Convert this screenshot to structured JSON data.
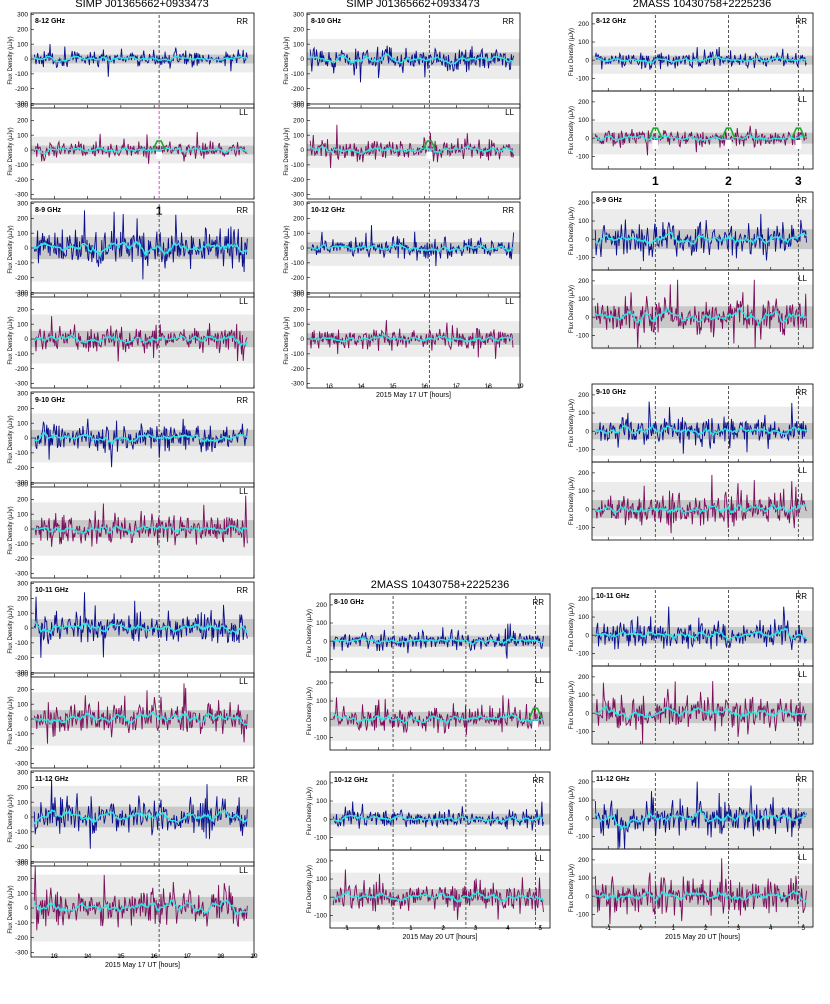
{
  "colors": {
    "rr": "#0b0f8a",
    "ll": "#7a0f5a",
    "smooth": "#2ee6e6",
    "flare": "#1faa2a",
    "marker": "#444444",
    "marker_flare": "#c040c0",
    "band_outer": "#ececec",
    "band_inner": "#c8c8c8"
  },
  "chart_data": [
    {
      "type": "line",
      "title": "SIMP J01365662+0933473",
      "source": "SIMP J01365662+0933473",
      "ylabel": "Flux Density (μJy)",
      "xlabel": "2015 May 17  UT    [hours]",
      "x_ticks": [
        "13",
        "14",
        "15",
        "16",
        "17",
        "18",
        "19"
      ],
      "xlim": [
        12.3,
        19
      ],
      "ylim": [
        -330,
        310
      ],
      "y_ticks": [
        "300",
        "200",
        "100",
        "0",
        "-100",
        "-200",
        "-300"
      ],
      "event_markers_x": [
        16.15
      ],
      "flare_labels": [
        "1"
      ],
      "panels": [
        {
          "band": "8-12 GHz",
          "polarization": "RR",
          "noise": 30,
          "flare_amp": 0
        },
        {
          "band": "8-12 GHz",
          "polarization": "LL",
          "noise": 30,
          "flare_amp": 60
        },
        {
          "band": "8-9 GHz",
          "polarization": "RR",
          "noise": 75,
          "flare_amp": 0
        },
        {
          "band": "8-9 GHz",
          "polarization": "LL",
          "noise": 55,
          "flare_amp": 0
        },
        {
          "band": "9-10 GHz",
          "polarization": "RR",
          "noise": 55,
          "flare_amp": 0
        },
        {
          "band": "9-10 GHz",
          "polarization": "LL",
          "noise": 60,
          "flare_amp": 0
        },
        {
          "band": "10-11 GHz",
          "polarization": "RR",
          "noise": 60,
          "flare_amp": 0
        },
        {
          "band": "10-11 GHz",
          "polarization": "LL",
          "noise": 60,
          "flare_amp": 0
        },
        {
          "band": "11-12 GHz",
          "polarization": "RR",
          "noise": 70,
          "flare_amp": 0
        },
        {
          "band": "11-12 GHz",
          "polarization": "LL",
          "noise": 75,
          "flare_amp": 0
        }
      ]
    },
    {
      "type": "line",
      "title": "SIMP J01365662+0933473",
      "source": "SIMP J01365662+0933473",
      "ylabel": "Flux Density (μJy)",
      "xlabel": "2015 May 17  UT    [hours]",
      "x_ticks": [
        "13",
        "14",
        "15",
        "16",
        "17",
        "18",
        "19"
      ],
      "xlim": [
        12.3,
        19
      ],
      "ylim": [
        -330,
        310
      ],
      "y_ticks": [
        "300",
        "200",
        "100",
        "0",
        "-100",
        "-200",
        "-300"
      ],
      "event_markers_x": [
        16.15
      ],
      "flare_labels": [],
      "panels": [
        {
          "band": "8-10 GHz",
          "polarization": "RR",
          "noise": 45,
          "flare_amp": 0
        },
        {
          "band": "8-10 GHz",
          "polarization": "LL",
          "noise": 40,
          "flare_amp": 60
        },
        {
          "band": "10-12 GHz",
          "polarization": "RR",
          "noise": 40,
          "flare_amp": 0
        },
        {
          "band": "10-12 GHz",
          "polarization": "LL",
          "noise": 40,
          "flare_amp": 0
        }
      ]
    },
    {
      "type": "line",
      "title": "2MASS 10430758+2225236",
      "source": "2MASS 10430758+2225236",
      "ylabel": "Flux Density (μJy)",
      "xlabel": "2015 May 20  UT   [hours]",
      "x_ticks": [
        "-1",
        "0",
        "1",
        "2",
        "3",
        "4",
        "5"
      ],
      "xlim": [
        -1.5,
        5.3
      ],
      "ylim": [
        -170,
        260
      ],
      "y_ticks": [
        "200",
        "100",
        "0",
        "-100"
      ],
      "event_markers_x": [
        0.45,
        2.7,
        4.85
      ],
      "flare_labels": [],
      "panels": [
        {
          "band": "8-10 GHz",
          "polarization": "RR",
          "noise": 30,
          "flare_amp": 0
        },
        {
          "band": "8-10 GHz",
          "polarization": "LL",
          "noise": 40,
          "flare_amp": 60
        },
        {
          "band": "10-12 GHz",
          "polarization": "RR",
          "noise": 30,
          "flare_amp": 0
        },
        {
          "band": "10-12 GHz",
          "polarization": "LL",
          "noise": 45,
          "flare_amp": 0
        }
      ]
    },
    {
      "type": "line",
      "title": "2MASS 10430758+2225236",
      "source": "2MASS 10430758+2225236",
      "ylabel": "Flux Density (μJy)",
      "xlabel": "2015 May 20  UT   [hours]",
      "x_ticks": [
        "-1",
        "0",
        "1",
        "2",
        "3",
        "4",
        "5"
      ],
      "xlim": [
        -1.5,
        5.3
      ],
      "ylim": [
        -170,
        260
      ],
      "y_ticks": [
        "200",
        "100",
        "0",
        "-100"
      ],
      "event_markers_x": [
        0.45,
        2.7,
        4.85
      ],
      "flare_labels": [
        "1",
        "2",
        "3"
      ],
      "panels": [
        {
          "band": "8-12 GHz",
          "polarization": "RR",
          "noise": 25,
          "flare_amp": 0
        },
        {
          "band": "8-12 GHz",
          "polarization": "LL",
          "noise": 30,
          "flare_amp": 55
        },
        {
          "band": "8-9 GHz",
          "polarization": "RR",
          "noise": 55,
          "flare_amp": 0
        },
        {
          "band": "8-9 GHz",
          "polarization": "LL",
          "noise": 60,
          "flare_amp": 0
        },
        {
          "band": "9-10 GHz",
          "polarization": "RR",
          "noise": 45,
          "flare_amp": 0
        },
        {
          "band": "9-10 GHz",
          "polarization": "LL",
          "noise": 50,
          "flare_amp": 0
        },
        {
          "band": "10-11 GHz",
          "polarization": "RR",
          "noise": 45,
          "flare_amp": 0
        },
        {
          "band": "10-11 GHz",
          "polarization": "LL",
          "noise": 55,
          "flare_amp": 0
        },
        {
          "band": "11-12 GHz",
          "polarization": "RR",
          "noise": 55,
          "flare_amp": 0
        },
        {
          "band": "11-12 GHz",
          "polarization": "LL",
          "noise": 60,
          "flare_amp": 0
        }
      ]
    }
  ]
}
